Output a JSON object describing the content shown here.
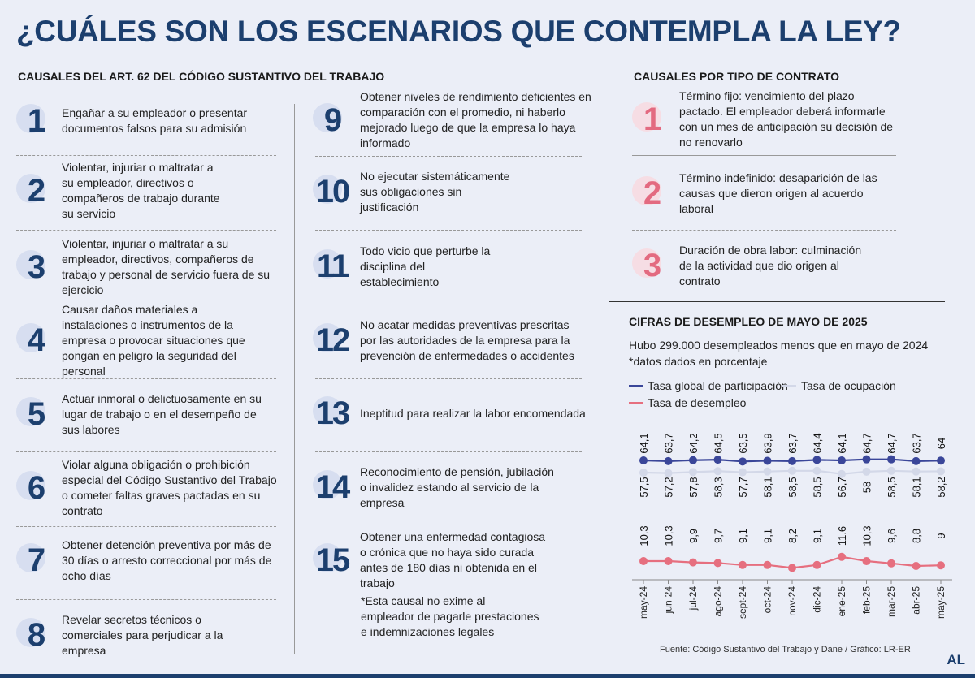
{
  "title": "¿CUÁLES SON LOS ESCENARIOS QUE CONTEMPLA LA LEY?",
  "left_heading": "CAUSALES DEL ART. 62 DEL CÓDIGO SUSTANTIVO DEL TRABAJO",
  "causales": [
    {
      "num": "1",
      "text": "Engañar a su empleador o presentar documentos falsos para su admisión"
    },
    {
      "num": "2",
      "text": "Violentar, injuriar o maltratar a su empleador, directivos o compañeros de trabajo durante su servicio"
    },
    {
      "num": "3",
      "text": "Violentar, injuriar o maltratar a su empleador, directivos, compañeros de trabajo y personal de servicio fuera de su ejercicio"
    },
    {
      "num": "4",
      "text": "Causar daños materiales a instalaciones o instrumentos de la empresa o provocar situaciones que pongan en peligro la seguridad del personal"
    },
    {
      "num": "5",
      "text": "Actuar inmoral o delictuosamente en su lugar de trabajo o en el desempeño de sus labores"
    },
    {
      "num": "6",
      "text": "Violar alguna obligación o prohibición especial del Código Sustantivo del Trabajo o cometer faltas graves pactadas en su contrato"
    },
    {
      "num": "7",
      "text": "Obtener detención preventiva por más de 30 días o arresto correccional por más de ocho días"
    },
    {
      "num": "8",
      "text": "Revelar secretos técnicos o comerciales para perjudicar a la empresa"
    },
    {
      "num": "9",
      "text": "Obtener niveles de rendimiento deficientes en comparación con el promedio, ni haberlo mejorado luego de que la empresa lo haya informado"
    },
    {
      "num": "10",
      "text": "No ejecutar sistemáticamente sus obligaciones sin justificación"
    },
    {
      "num": "11",
      "text": "Todo vicio que perturbe la disciplina del establecimiento"
    },
    {
      "num": "12",
      "text": "No acatar medidas preventivas prescritas por las autoridades de la empresa para la prevención de enfermedades o accidentes"
    },
    {
      "num": "13",
      "text": "Ineptitud para realizar la labor encomendada"
    },
    {
      "num": "14",
      "text": "Reconocimiento de pensión, jubilación o invalidez estando al servicio de la empresa"
    },
    {
      "num": "15",
      "text": "Obtener una enfermedad contagiosa o crónica que no haya sido curada antes de 180 días ni obtenida en el trabajo"
    }
  ],
  "footnote": "*Esta causal no exime al empleador de pagarle prestaciones e indemnizaciones legales",
  "right_heading": "CAUSALES POR TIPO DE CONTRATO",
  "contratos": [
    {
      "num": "1",
      "text": "Término fijo: vencimiento del plazo pactado. El empleador deberá informarle con un mes de anticipación su decisión de no renovarlo"
    },
    {
      "num": "2",
      "text": "Término indefinido: desaparición de las causas que dieron origen al acuerdo laboral"
    },
    {
      "num": "3",
      "text": "Duración de obra labor: culminación de la actividad que dio origen al contrato"
    }
  ],
  "chart_heading": "CIFRAS DE DESEMPLEO DE MAYO DE 2025",
  "chart_subtitle": "Hubo 299.000 desempleados menos que en mayo de 2024",
  "chart_note": "*datos dados en porcentaje",
  "source": "Fuente: Código Sustantivo del Trabajo y Dane / Gráfico: LR-ER",
  "logo": "AL",
  "chart_data": {
    "type": "line",
    "categories": [
      "may-24",
      "jun-24",
      "jul-24",
      "ago-24",
      "sept-24",
      "oct-24",
      "nov-24",
      "dic-24",
      "ene-25",
      "feb-25",
      "mar-25",
      "abr-25",
      "may-25"
    ],
    "series": [
      {
        "name": "Tasa global de participación",
        "color": "#3a4699",
        "values": [
          64.1,
          63.7,
          64.2,
          64.5,
          63.5,
          63.9,
          63.7,
          64.4,
          64.1,
          64.7,
          64.7,
          63.7,
          64
        ],
        "labels": [
          "64,1",
          "63,7",
          "64,2",
          "64,5",
          "63,5",
          "63,9",
          "63,7",
          "64,4",
          "64,1",
          "64,7",
          "64,7",
          "63,7",
          "64"
        ]
      },
      {
        "name": "Tasa de ocupación",
        "color": "#d3d8e8",
        "values": [
          57.5,
          57.2,
          57.8,
          58.3,
          57.7,
          58.1,
          58.5,
          58.5,
          56.7,
          58,
          58.5,
          58.1,
          58.2
        ],
        "labels": [
          "57,5",
          "57,2",
          "57,8",
          "58,3",
          "57,7",
          "58,1",
          "58,5",
          "58,5",
          "56,7",
          "58",
          "58,5",
          "58,1",
          "58,2"
        ]
      },
      {
        "name": "Tasa de desempleo",
        "color": "#e66f7f",
        "values": [
          10.3,
          10.3,
          9.9,
          9.7,
          9.1,
          9.1,
          8.2,
          9.1,
          11.6,
          10.3,
          9.6,
          8.8,
          9
        ],
        "labels": [
          "10,3",
          "10,3",
          "9,9",
          "9,7",
          "9,1",
          "9,1",
          "8,2",
          "9,1",
          "11,6",
          "10,3",
          "9,6",
          "8,8",
          "9"
        ]
      }
    ]
  }
}
